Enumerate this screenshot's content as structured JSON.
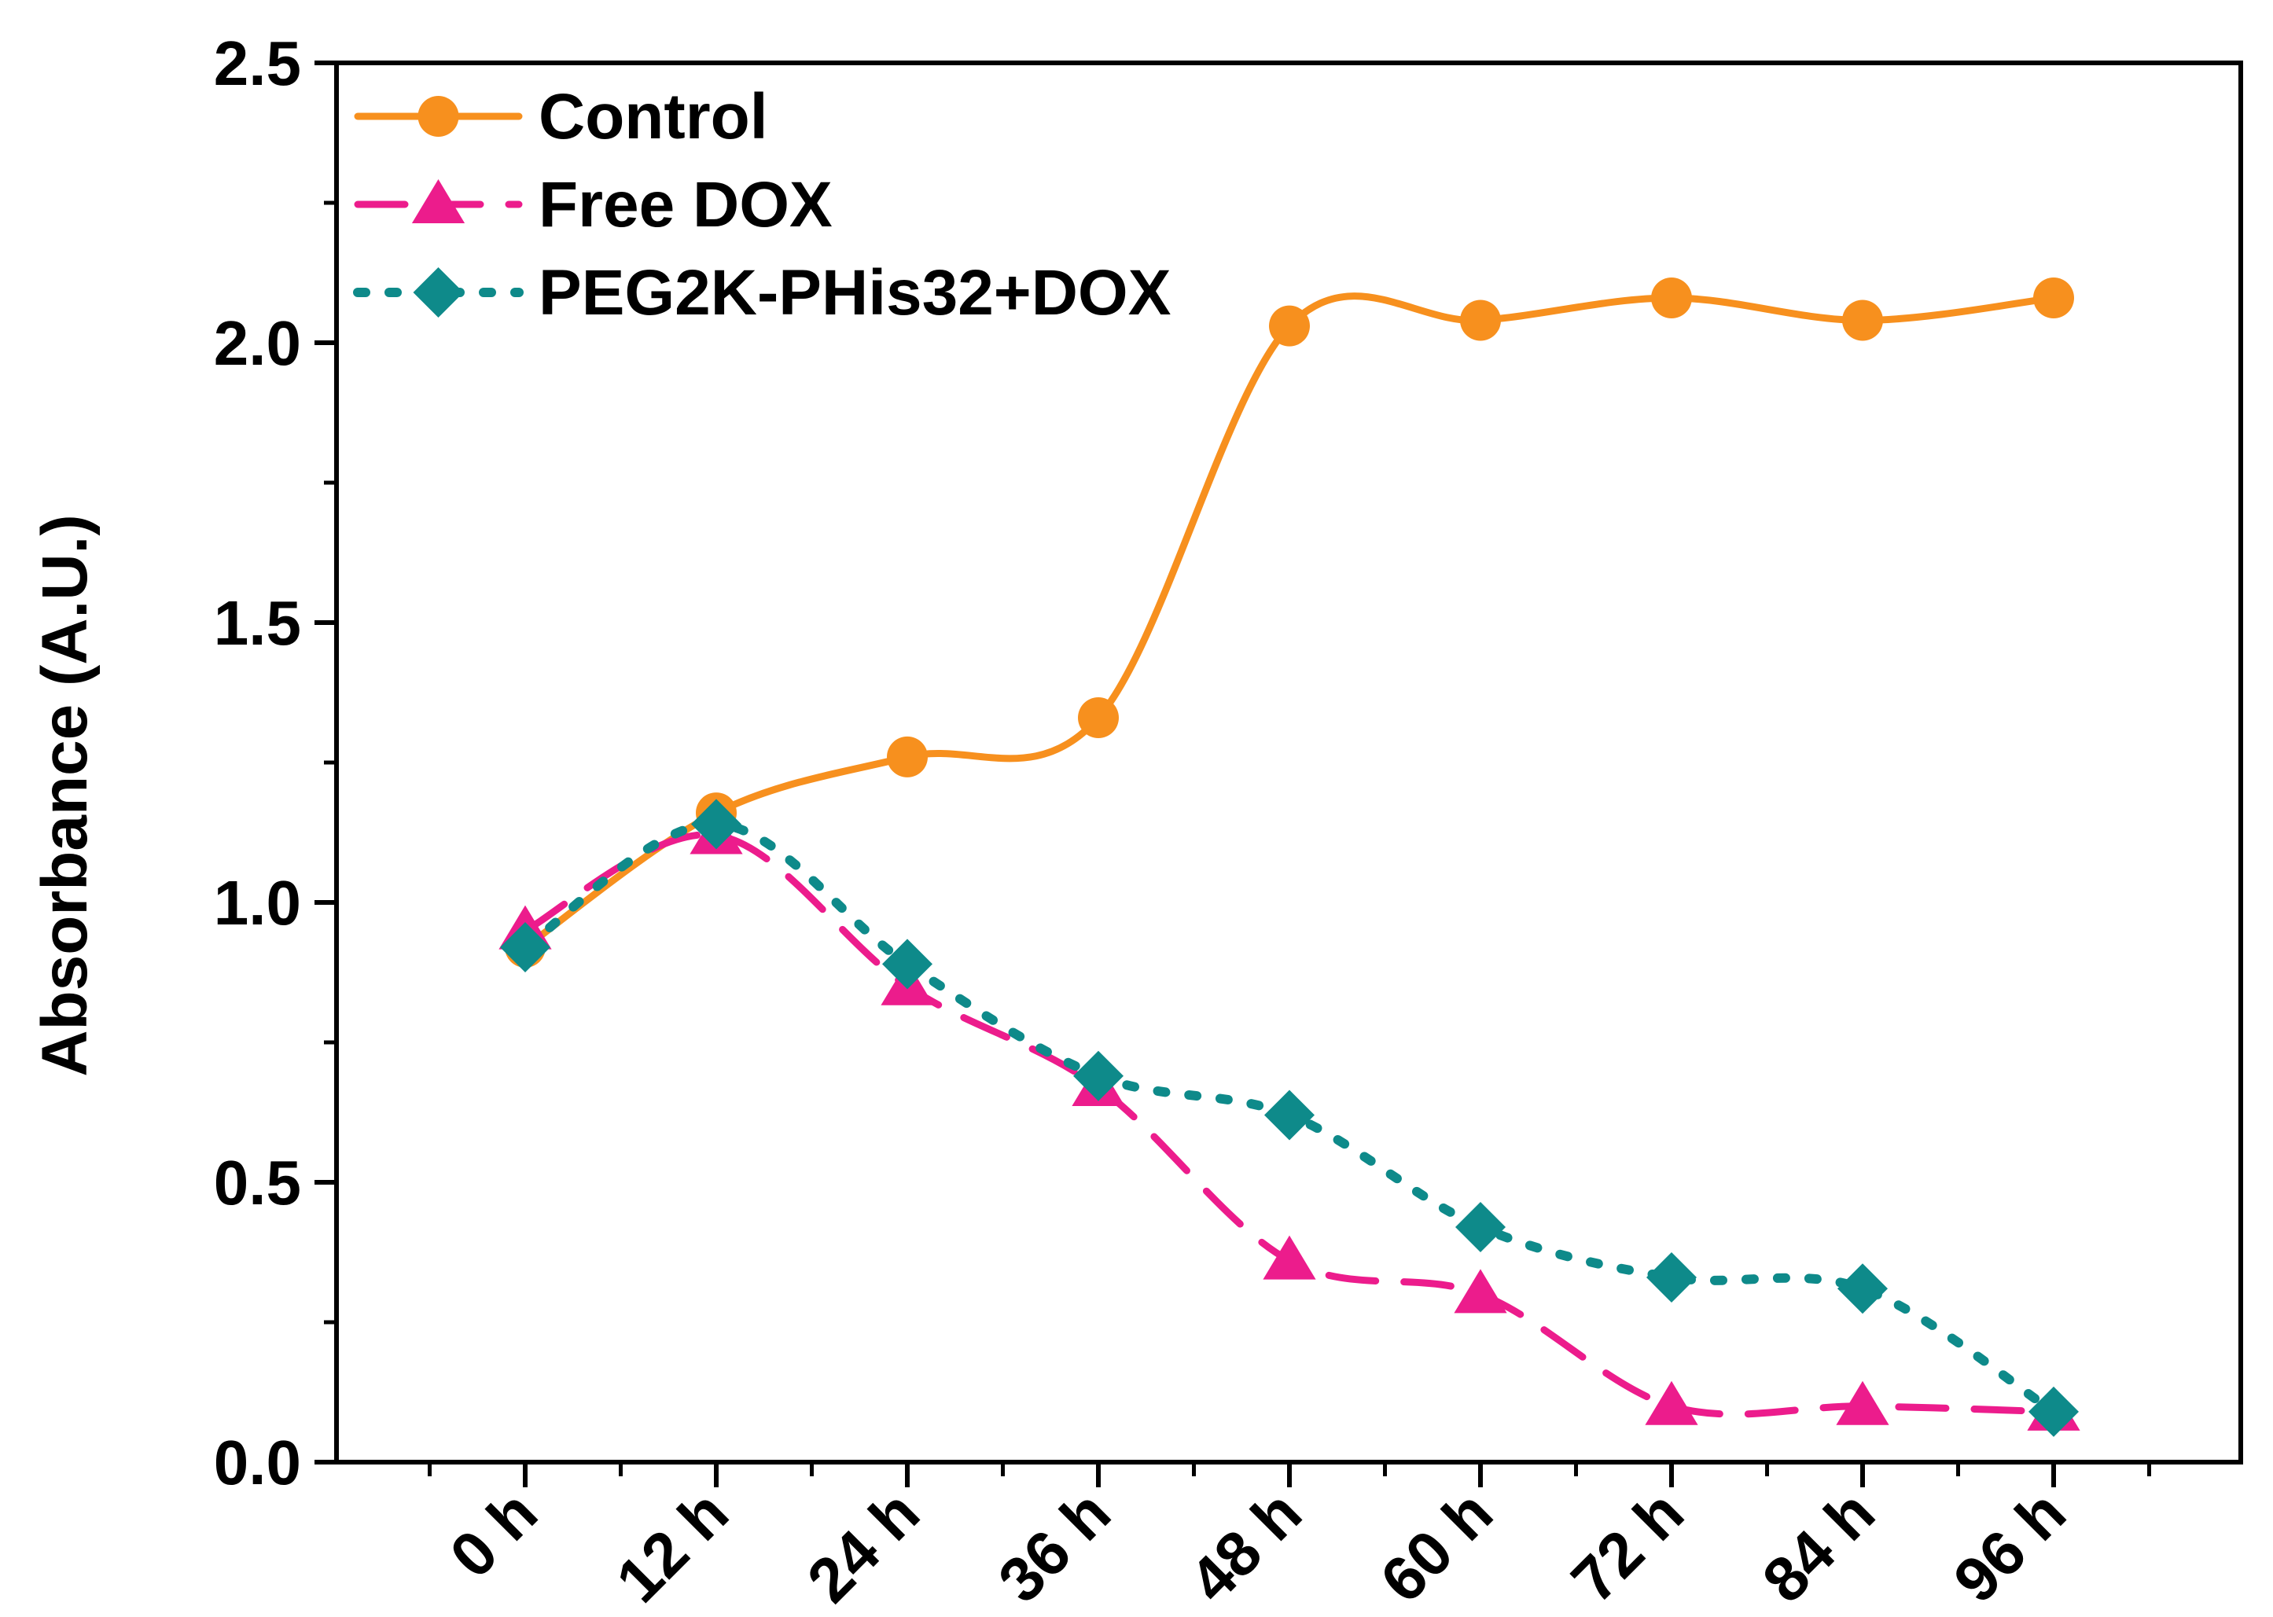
{
  "chart_data": {
    "type": "line",
    "title": "",
    "xlabel": "",
    "ylabel": "Absorbance (A.U.)",
    "ylim": [
      0,
      2.5
    ],
    "y_ticks": [
      "0.0",
      "0.5",
      "1.0",
      "1.5",
      "2.0",
      "2.5"
    ],
    "y_tick_values": [
      0,
      0.5,
      1.0,
      1.5,
      2.0,
      2.5
    ],
    "categories": [
      "0 h",
      "12 h",
      "24 h",
      "36 h",
      "48 h",
      "60 h",
      "72 h",
      "84 h",
      "96 h"
    ],
    "legend_position": "top-left",
    "series": [
      {
        "name": "Control",
        "color": "#F7901E",
        "line_style": "solid",
        "marker": "circle",
        "smooth": true,
        "values": [
          0.92,
          1.16,
          1.26,
          1.33,
          2.03,
          2.04,
          2.08,
          2.04,
          2.08
        ]
      },
      {
        "name": "Free DOX",
        "color": "#EC1C8C",
        "line_style": "dashed",
        "marker": "triangle",
        "smooth": true,
        "values": [
          0.95,
          1.12,
          0.85,
          0.67,
          0.36,
          0.3,
          0.1,
          0.1,
          0.09
        ]
      },
      {
        "name": "PEG2K-PHis32+DOX",
        "color": "#0E8A8A",
        "line_style": "dotted",
        "marker": "diamond",
        "smooth": true,
        "values": [
          0.92,
          1.14,
          0.89,
          0.69,
          0.62,
          0.42,
          0.33,
          0.31,
          0.09
        ]
      }
    ]
  }
}
